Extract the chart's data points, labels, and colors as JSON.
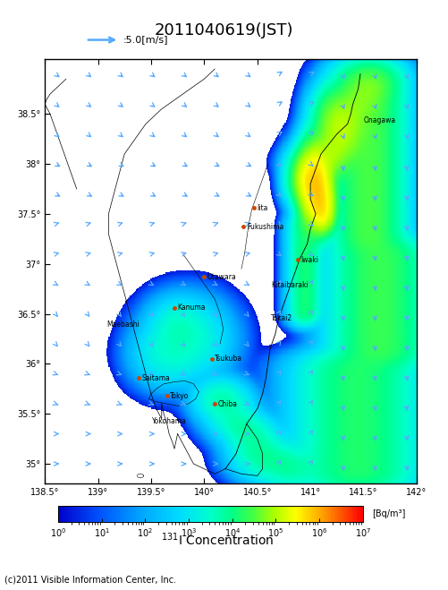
{
  "title": "2011040619(JST)",
  "wind_legend": ":5.0[m/s]",
  "colorbar_label": "[Bq/m³]",
  "copyright": "(c)2011 Visible Information Center, Inc.",
  "map_xlim": [
    138.5,
    142.0
  ],
  "map_ylim": [
    34.8,
    39.05
  ],
  "xticks": [
    138.5,
    139.0,
    139.5,
    140.0,
    140.5,
    141.0,
    141.5,
    142.0
  ],
  "yticks": [
    35.0,
    35.5,
    36.0,
    36.5,
    37.0,
    37.5,
    38.0,
    38.5
  ],
  "bg_color": "#ffffff",
  "arrow_color": "#55aaff",
  "colorbar_vmin": 1,
  "colorbar_vmax": 10000000.0,
  "cities": [
    {
      "name": "Iita",
      "lon": 140.47,
      "lat": 37.56,
      "dot": true,
      "ha": "left"
    },
    {
      "name": "Fukushima",
      "lon": 140.37,
      "lat": 37.37,
      "dot": true,
      "ha": "left"
    },
    {
      "name": "Iwaki",
      "lon": 140.88,
      "lat": 37.04,
      "dot": true,
      "ha": "left"
    },
    {
      "name": "Otawara",
      "lon": 140.0,
      "lat": 36.87,
      "dot": true,
      "ha": "left"
    },
    {
      "name": "Kitaibaraki",
      "lon": 140.6,
      "lat": 36.79,
      "dot": false,
      "ha": "left"
    },
    {
      "name": "Kanuma",
      "lon": 139.72,
      "lat": 36.56,
      "dot": true,
      "ha": "left"
    },
    {
      "name": "Tokai2",
      "lon": 140.6,
      "lat": 36.46,
      "dot": false,
      "ha": "left"
    },
    {
      "name": "Maebashi",
      "lon": 139.05,
      "lat": 36.39,
      "dot": false,
      "ha": "left"
    },
    {
      "name": "Tsukuba",
      "lon": 140.07,
      "lat": 36.05,
      "dot": true,
      "ha": "left"
    },
    {
      "name": "Saitama",
      "lon": 139.38,
      "lat": 35.86,
      "dot": true,
      "ha": "left"
    },
    {
      "name": "Tokyo",
      "lon": 139.65,
      "lat": 35.68,
      "dot": true,
      "ha": "left"
    },
    {
      "name": "Chiba",
      "lon": 140.1,
      "lat": 35.6,
      "dot": true,
      "ha": "left"
    },
    {
      "name": "Yokohama",
      "lon": 139.48,
      "lat": 35.43,
      "dot": false,
      "ha": "left"
    },
    {
      "name": "Onagawa",
      "lon": 141.47,
      "lat": 38.44,
      "dot": false,
      "ha": "left"
    }
  ],
  "wind_vectors": {
    "lons": [
      138.6,
      138.9,
      139.2,
      139.5,
      139.8,
      140.1,
      140.4,
      140.7,
      141.0,
      141.3,
      141.6,
      141.9,
      138.6,
      138.9,
      139.2,
      139.5,
      139.8,
      140.1,
      140.4,
      140.7,
      141.0,
      141.3,
      141.6,
      141.9,
      138.6,
      138.9,
      139.2,
      139.5,
      139.8,
      140.1,
      140.4,
      140.7,
      141.0,
      141.3,
      141.6,
      141.9,
      138.6,
      138.9,
      139.2,
      139.5,
      139.8,
      140.1,
      140.4,
      140.7,
      141.0,
      141.3,
      141.6,
      141.9,
      138.6,
      138.9,
      139.2,
      139.5,
      139.8,
      140.1,
      140.4,
      140.7,
      141.0,
      141.3,
      141.6,
      141.9,
      138.6,
      138.9,
      139.2,
      139.5,
      139.8,
      140.1,
      140.4,
      140.7,
      141.0,
      141.3,
      141.6,
      141.9,
      138.6,
      138.9,
      139.2,
      139.5,
      139.8,
      140.1,
      140.4,
      140.7,
      141.0,
      141.3,
      141.6,
      141.9,
      138.6,
      138.9,
      139.2,
      139.5,
      139.8,
      140.1,
      140.4,
      140.7,
      141.0,
      141.3,
      141.6,
      141.9,
      138.6,
      138.9,
      139.2,
      139.5,
      139.8,
      140.1,
      140.4,
      140.7,
      141.0,
      141.3,
      141.6,
      141.9,
      138.6,
      138.9,
      139.2,
      139.5,
      139.8,
      140.1,
      140.4,
      140.7,
      141.0,
      141.3,
      141.6,
      141.9,
      138.6,
      138.9,
      139.2,
      139.5,
      139.8,
      140.1,
      140.4,
      140.7,
      141.0,
      141.3,
      141.6,
      141.9,
      138.6,
      138.9,
      139.2,
      139.5,
      139.8,
      140.1,
      140.4,
      140.7,
      141.0,
      141.3,
      141.6,
      141.9,
      138.6,
      138.9,
      139.2,
      139.5,
      139.8,
      140.1,
      140.4,
      140.7,
      141.0,
      141.3,
      141.6,
      141.9,
      138.6,
      138.9,
      139.2,
      139.5,
      139.8,
      140.1,
      140.4,
      140.7,
      141.0,
      141.3,
      141.6,
      141.9
    ],
    "lats": [
      38.9,
      38.9,
      38.9,
      38.9,
      38.9,
      38.9,
      38.9,
      38.9,
      38.9,
      38.9,
      38.9,
      38.9,
      38.6,
      38.6,
      38.6,
      38.6,
      38.6,
      38.6,
      38.6,
      38.6,
      38.6,
      38.6,
      38.6,
      38.6,
      38.3,
      38.3,
      38.3,
      38.3,
      38.3,
      38.3,
      38.3,
      38.3,
      38.3,
      38.3,
      38.3,
      38.3,
      38.0,
      38.0,
      38.0,
      38.0,
      38.0,
      38.0,
      38.0,
      38.0,
      38.0,
      38.0,
      38.0,
      38.0,
      37.7,
      37.7,
      37.7,
      37.7,
      37.7,
      37.7,
      37.7,
      37.7,
      37.7,
      37.7,
      37.7,
      37.7,
      37.4,
      37.4,
      37.4,
      37.4,
      37.4,
      37.4,
      37.4,
      37.4,
      37.4,
      37.4,
      37.4,
      37.4,
      37.1,
      37.1,
      37.1,
      37.1,
      37.1,
      37.1,
      37.1,
      37.1,
      37.1,
      37.1,
      37.1,
      37.1,
      36.8,
      36.8,
      36.8,
      36.8,
      36.8,
      36.8,
      36.8,
      36.8,
      36.8,
      36.8,
      36.8,
      36.8,
      36.5,
      36.5,
      36.5,
      36.5,
      36.5,
      36.5,
      36.5,
      36.5,
      36.5,
      36.5,
      36.5,
      36.5,
      36.2,
      36.2,
      36.2,
      36.2,
      36.2,
      36.2,
      36.2,
      36.2,
      36.2,
      36.2,
      36.2,
      36.2,
      35.9,
      35.9,
      35.9,
      35.9,
      35.9,
      35.9,
      35.9,
      35.9,
      35.9,
      35.9,
      35.9,
      35.9,
      35.6,
      35.6,
      35.6,
      35.6,
      35.6,
      35.6,
      35.6,
      35.6,
      35.6,
      35.6,
      35.6,
      35.6,
      35.3,
      35.3,
      35.3,
      35.3,
      35.3,
      35.3,
      35.3,
      35.3,
      35.3,
      35.3,
      35.3,
      35.3,
      35.0,
      35.0,
      35.0,
      35.0,
      35.0,
      35.0,
      35.0,
      35.0,
      35.0,
      35.0,
      35.0,
      35.0
    ]
  }
}
